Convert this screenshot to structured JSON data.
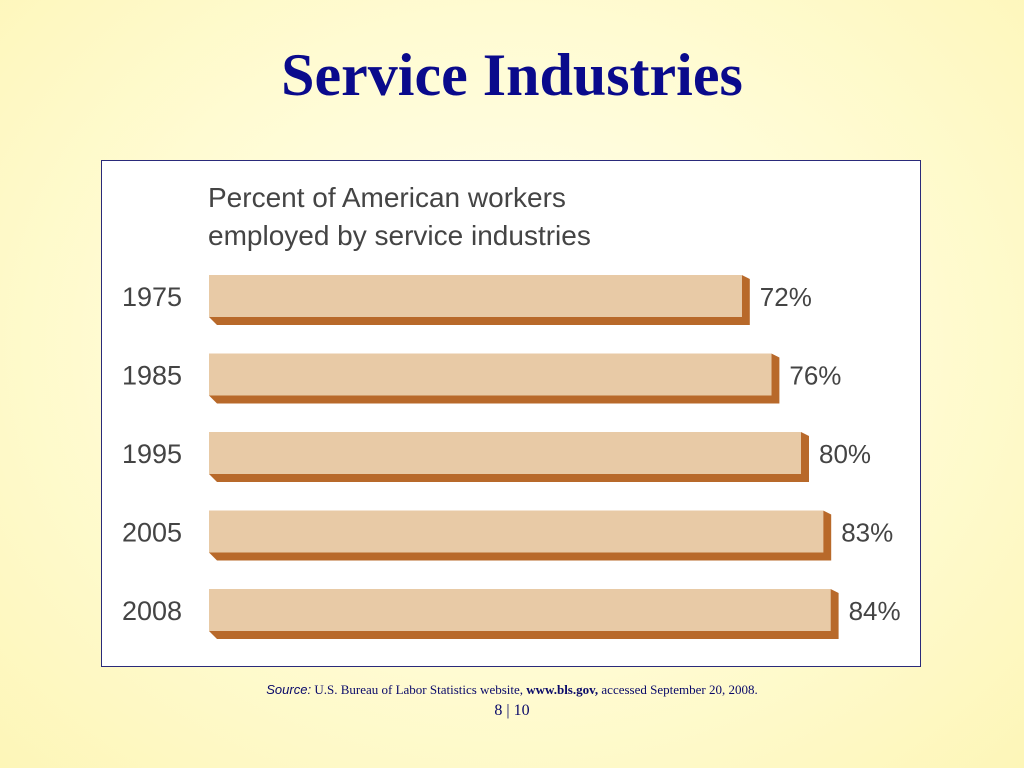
{
  "slide": {
    "title": "Service Industries",
    "page": "8 | 10"
  },
  "source": {
    "label": "Source:",
    "text_before": "U.S. Bureau of Labor Statistics website,",
    "url": "www.bls.gov,",
    "text_after": "accessed September 20, 2008."
  },
  "colors": {
    "title": "#0a0a8c",
    "bar_face": "#e8caa6",
    "bar_shadow": "#b8692a",
    "text": "#444444"
  },
  "chart_data": {
    "type": "bar",
    "orientation": "horizontal",
    "title_lines": [
      "Percent of American workers",
      "employed by service industries"
    ],
    "categories": [
      "1975",
      "1985",
      "1995",
      "2005",
      "2008"
    ],
    "values": [
      72,
      76,
      80,
      83,
      84
    ],
    "data_labels": [
      "72%",
      "76%",
      "80%",
      "83%",
      "84%"
    ],
    "xlim": [
      0,
      100
    ],
    "grid": false
  }
}
